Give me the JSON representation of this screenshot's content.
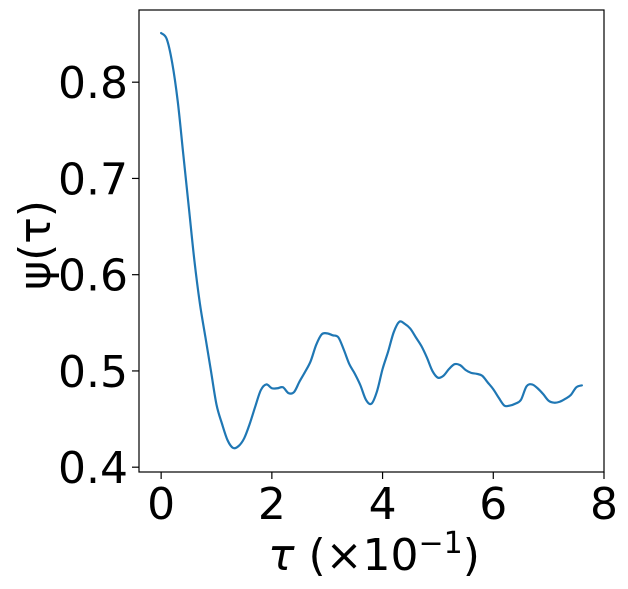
{
  "chart_data": {
    "type": "line",
    "title": "",
    "xlabel_parts": [
      "τ",
      " (×10",
      "−1",
      ")"
    ],
    "ylabel": "ψ(τ)",
    "xlim": [
      -0.4,
      8.0
    ],
    "ylim": [
      0.395,
      0.875
    ],
    "x_ticks": [
      0,
      2,
      4,
      6,
      8
    ],
    "x_tick_labels": [
      "0",
      "2",
      "4",
      "6",
      "8"
    ],
    "y_ticks": [
      0.4,
      0.5,
      0.6,
      0.7,
      0.8
    ],
    "y_tick_labels": [
      "0.4",
      "0.5",
      "0.6",
      "0.7",
      "0.8"
    ],
    "grid": false,
    "line_color": "#1f77b4",
    "series": [
      {
        "x": [
          0.0,
          0.1,
          0.2,
          0.3,
          0.4,
          0.5,
          0.6,
          0.7,
          0.8,
          0.9,
          1.0,
          1.1,
          1.2,
          1.3,
          1.4,
          1.5,
          1.6,
          1.7,
          1.8,
          1.9,
          2.0,
          2.1,
          2.2,
          2.3,
          2.4,
          2.5,
          2.6,
          2.7,
          2.8,
          2.9,
          3.0,
          3.1,
          3.2,
          3.3,
          3.4,
          3.5,
          3.6,
          3.7,
          3.8,
          3.9,
          4.0,
          4.1,
          4.2,
          4.3,
          4.4,
          4.5,
          4.6,
          4.7,
          4.8,
          4.9,
          5.0,
          5.1,
          5.2,
          5.3,
          5.4,
          5.5,
          5.6,
          5.7,
          5.8,
          5.9,
          6.0,
          6.1,
          6.2,
          6.3,
          6.4,
          6.5,
          6.6,
          6.7,
          6.8,
          6.9,
          7.0,
          7.1,
          7.2,
          7.3,
          7.4,
          7.5,
          7.6
        ],
        "values": [
          0.851,
          0.845,
          0.82,
          0.78,
          0.725,
          0.67,
          0.615,
          0.57,
          0.535,
          0.5,
          0.465,
          0.445,
          0.428,
          0.42,
          0.422,
          0.43,
          0.445,
          0.463,
          0.48,
          0.486,
          0.482,
          0.482,
          0.483,
          0.477,
          0.478,
          0.489,
          0.499,
          0.51,
          0.527,
          0.538,
          0.539,
          0.537,
          0.535,
          0.522,
          0.507,
          0.497,
          0.485,
          0.47,
          0.466,
          0.479,
          0.502,
          0.52,
          0.54,
          0.551,
          0.549,
          0.544,
          0.535,
          0.526,
          0.514,
          0.5,
          0.493,
          0.495,
          0.502,
          0.507,
          0.506,
          0.501,
          0.498,
          0.497,
          0.495,
          0.488,
          0.481,
          0.472,
          0.464,
          0.464,
          0.466,
          0.47,
          0.484,
          0.486,
          0.482,
          0.476,
          0.469,
          0.467,
          0.468,
          0.471,
          0.475,
          0.483,
          0.485
        ]
      }
    ]
  }
}
